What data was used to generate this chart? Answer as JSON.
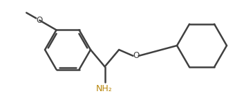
{
  "bg_color": "#ffffff",
  "line_color": "#404040",
  "line_width": 1.8,
  "text_color": "#404040",
  "font_size": 8.5,
  "NH2_label": "NH₂",
  "O_label": "O",
  "O_methoxy": "O",
  "methyl_label": ""
}
